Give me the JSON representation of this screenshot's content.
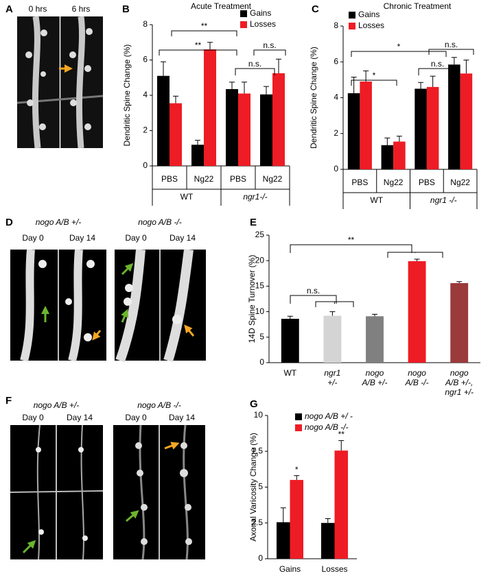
{
  "panel_labels": [
    "A",
    "B",
    "C",
    "D",
    "E",
    "F",
    "G"
  ],
  "image_panels": {
    "A": {
      "days": [
        "0 hrs",
        "6 hrs"
      ]
    },
    "D": {
      "left": {
        "title": "nogo A/B +/-",
        "days": [
          "Day 0",
          "Day 14"
        ]
      },
      "right": {
        "title": "nogo A/B -/-",
        "days": [
          "Day 0",
          "Day 14"
        ]
      }
    },
    "F": {
      "left": {
        "title": "nogo A/B +/-",
        "days": [
          "Day 0",
          "Day 14"
        ]
      },
      "right": {
        "title": "nogo A/B -/-",
        "days": [
          "Day 0",
          "Day 14"
        ]
      }
    }
  },
  "chart_data": [
    {
      "type": "bar",
      "title": "Acute Treatment",
      "ylabel": "Dendritic Spine Change (%)",
      "categories": [
        "PBS",
        "Ng22",
        "PBS",
        "Ng22"
      ],
      "groups": [
        "WT",
        "ngr1-/-"
      ],
      "series": [
        {
          "name": "Gains",
          "color": "#000000",
          "values": [
            5.1,
            1.2,
            4.35,
            4.05
          ],
          "errors": [
            0.8,
            0.25,
            0.4,
            0.45
          ]
        },
        {
          "name": "Losses",
          "color": "#ee1c25",
          "values": [
            3.55,
            6.6,
            4.1,
            5.25
          ],
          "errors": [
            0.4,
            0.4,
            0.65,
            0.8
          ]
        }
      ],
      "ylim": [
        0,
        8
      ],
      "yticks": [
        0,
        2,
        4,
        6,
        8
      ],
      "legend": "top-right",
      "annotations": [
        "**",
        "**",
        "n.s.",
        "n.s."
      ]
    },
    {
      "type": "bar",
      "title": "Chronic Treatment",
      "ylabel": "Dendritic Spine Change (%)",
      "categories": [
        "PBS",
        "Ng22",
        "PBS",
        "Ng22"
      ],
      "groups": [
        "WT",
        "ngr1 -/-"
      ],
      "series": [
        {
          "name": "Gains",
          "color": "#000000",
          "values": [
            4.25,
            1.35,
            4.5,
            5.85
          ],
          "errors": [
            0.9,
            0.4,
            0.35,
            0.4
          ]
        },
        {
          "name": "Losses",
          "color": "#ee1c25",
          "values": [
            4.9,
            1.55,
            4.6,
            5.35
          ],
          "errors": [
            0.6,
            0.3,
            0.6,
            0.75
          ]
        }
      ],
      "ylim": [
        0,
        8
      ],
      "yticks": [
        0,
        2,
        4,
        6,
        8
      ],
      "legend": "top-left",
      "annotations": [
        "*",
        "*",
        "n.s.",
        "n.s."
      ]
    },
    {
      "type": "bar",
      "ylabel": "14D Spine Turnover (%)",
      "categories": [
        [
          "WT"
        ],
        [
          "ngr1",
          "+/-"
        ],
        [
          "nogo",
          "A/B +/-"
        ],
        [
          "nogo",
          "A/B -/-"
        ],
        [
          "nogo",
          "A/B +/-,",
          "ngr1 +/-"
        ]
      ],
      "values": [
        8.6,
        9.2,
        9.1,
        19.9,
        15.6
      ],
      "errors": [
        0.5,
        0.8,
        0.4,
        0.4,
        0.3
      ],
      "colors": [
        "#000000",
        "#d4d4d4",
        "#808080",
        "#ee1c25",
        "#9b3a3a"
      ],
      "ylim": [
        0,
        25
      ],
      "yticks": [
        0,
        5,
        10,
        15,
        20,
        25
      ],
      "annotations": [
        "**",
        "n.s."
      ]
    },
    {
      "type": "bar",
      "ylabel": "Axonal  Varicosity Change (%)",
      "categories": [
        "Gains",
        "Losses"
      ],
      "series": [
        {
          "name": "nogo A/B +/ -",
          "color": "#000000",
          "values": [
            2.55,
            2.5
          ],
          "errors": [
            1.0,
            0.3
          ]
        },
        {
          "name": "nogo A/B -/-",
          "color": "#ee1c25",
          "values": [
            5.5,
            7.55
          ],
          "errors": [
            0.3,
            0.7
          ]
        }
      ],
      "ylim": [
        0,
        10
      ],
      "yticks": [
        0,
        2.5,
        5,
        7.5,
        10
      ],
      "legend": "top-left",
      "annotations": [
        "*",
        "**"
      ]
    }
  ]
}
